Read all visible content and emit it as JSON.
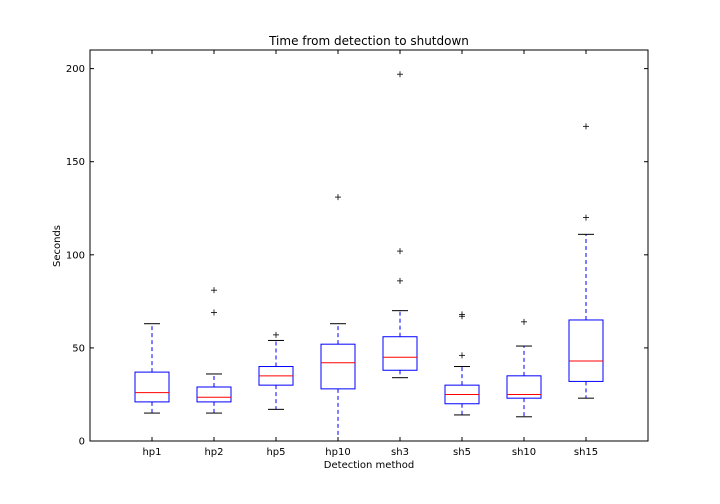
{
  "chart_data": {
    "type": "box",
    "title": "Time from detection to shutdown",
    "xlabel": "Detection method",
    "ylabel": "Seconds",
    "ylim": [
      0,
      210
    ],
    "yticks": [
      0,
      50,
      100,
      150,
      200
    ],
    "grid": false,
    "colors": {
      "box": "#0000ff",
      "median": "#ff0000",
      "whisker": "#0000ff",
      "cap": "#000000",
      "flier": "#000000"
    },
    "categories": [
      "hp1",
      "hp2",
      "hp5",
      "hp10",
      "sh3",
      "sh5",
      "sh10",
      "sh15"
    ],
    "boxes": [
      {
        "label": "hp1",
        "whislo": 15,
        "q1": 21,
        "med": 26,
        "q3": 37,
        "whishi": 63,
        "fliers": []
      },
      {
        "label": "hp2",
        "whislo": 15,
        "q1": 21,
        "med": 23.5,
        "q3": 29,
        "whishi": 36,
        "fliers": [
          69,
          81
        ]
      },
      {
        "label": "hp5",
        "whislo": 17,
        "q1": 30,
        "med": 35,
        "q3": 40,
        "whishi": 54,
        "fliers": [
          57
        ]
      },
      {
        "label": "hp10",
        "whislo": 0,
        "q1": 28,
        "med": 42,
        "q3": 52,
        "whishi": 63,
        "fliers": [
          131
        ]
      },
      {
        "label": "sh3",
        "whislo": 34,
        "q1": 38,
        "med": 45,
        "q3": 56,
        "whishi": 70,
        "fliers": [
          86,
          102,
          197
        ]
      },
      {
        "label": "sh5",
        "whislo": 14,
        "q1": 20,
        "med": 25,
        "q3": 30,
        "whishi": 40,
        "fliers": [
          46,
          67,
          68
        ]
      },
      {
        "label": "sh10",
        "whislo": 13,
        "q1": 23,
        "med": 25,
        "q3": 35,
        "whishi": 51,
        "fliers": [
          64
        ]
      },
      {
        "label": "sh15",
        "whislo": 23,
        "q1": 32,
        "med": 43,
        "q3": 65,
        "whishi": 111,
        "fliers": [
          120,
          169
        ]
      }
    ]
  }
}
